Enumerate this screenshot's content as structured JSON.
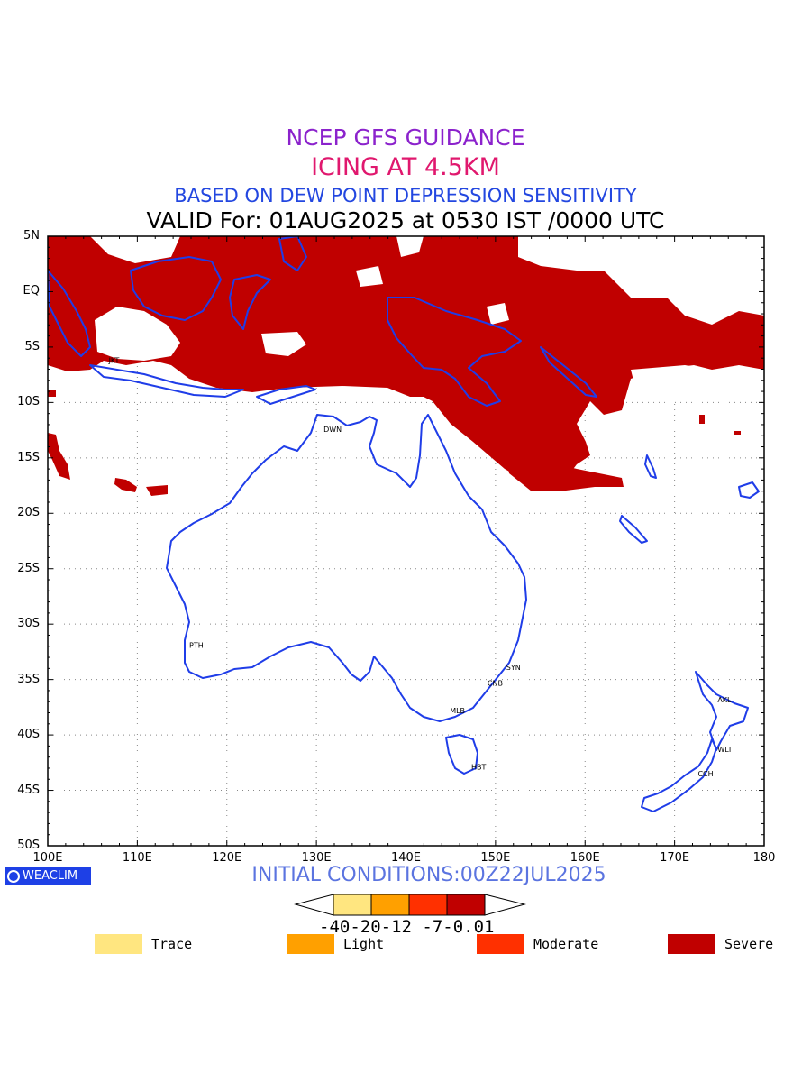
{
  "titles": {
    "line1": "NCEP GFS GUIDANCE",
    "line2": "ICING AT 4.5KM",
    "line3": "BASED ON DEW POINT DEPRESSION SENSITIVITY",
    "line4": "VALID For: 01AUG2025 at 0530 IST /0000 UTC",
    "line1_color": "#8b22cc",
    "line2_color": "#e0186e",
    "line3_color": "#2347e0",
    "line4_color": "#000000"
  },
  "axes": {
    "y_labels": [
      "5N",
      "EQ",
      "5S",
      "10S",
      "15S",
      "20S",
      "25S",
      "30S",
      "35S",
      "40S",
      "45S",
      "50S"
    ],
    "x_labels": [
      "100E",
      "110E",
      "120E",
      "130E",
      "140E",
      "150E",
      "160E",
      "170E",
      "180"
    ],
    "lon_range": [
      100,
      180
    ],
    "lat_range": [
      -50,
      5
    ]
  },
  "stations": [
    {
      "code": "JKT",
      "lon": 106.8,
      "lat": -6.2
    },
    {
      "code": "DWN",
      "lon": 130.8,
      "lat": -12.4
    },
    {
      "code": "PTH",
      "lon": 115.8,
      "lat": -31.9
    },
    {
      "code": "SYN",
      "lon": 151.2,
      "lat": -33.9
    },
    {
      "code": "CNB",
      "lon": 149.1,
      "lat": -35.3
    },
    {
      "code": "MLB",
      "lon": 144.9,
      "lat": -37.8
    },
    {
      "code": "HBT",
      "lon": 147.3,
      "lat": -42.9
    },
    {
      "code": "AKL",
      "lon": 174.8,
      "lat": -36.8
    },
    {
      "code": "WLT",
      "lon": 174.8,
      "lat": -41.3
    },
    {
      "code": "CCH",
      "lon": 172.6,
      "lat": -43.5
    }
  ],
  "icing_field": {
    "description_level": "Severe",
    "color": "#c00000"
  },
  "coast_color": "#1f3de8",
  "logo": "WEACLIM",
  "initial_conditions": "INITIAL CONDITIONS:00Z22JUL2025",
  "colorbar": {
    "labels": "-40-20-12 -7-0.01",
    "colors": [
      "#ffe680",
      "#ffa000",
      "#ff3000",
      "#c00000"
    ]
  },
  "legend": [
    {
      "label": "Trace",
      "color": "#ffe680"
    },
    {
      "label": "Light",
      "color": "#ffa000"
    },
    {
      "label": "Moderate",
      "color": "#ff3000"
    },
    {
      "label": "Severe",
      "color": "#c00000"
    }
  ]
}
